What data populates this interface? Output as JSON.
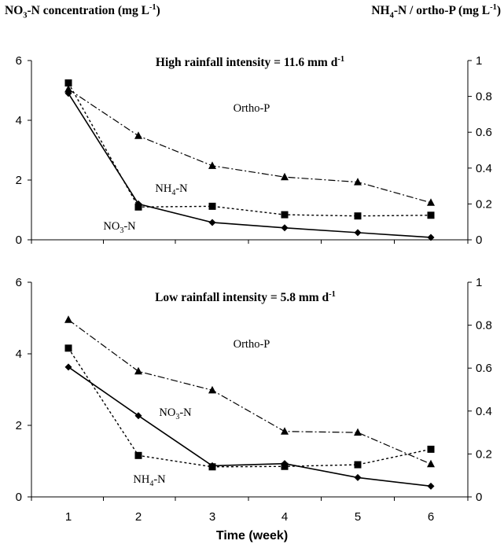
{
  "labels": {
    "left_axis": {
      "chem": "NO",
      "sub": "3",
      "rest": "-N concentration (mg L",
      "sup": "-1",
      "end": ")"
    },
    "right_axis": {
      "chem": "NH",
      "sub": "4",
      "rest": "-N / ortho-P (mg L",
      "sup": "-1",
      "end": ")"
    },
    "x_axis": "Time (week)"
  },
  "chart_data": [
    {
      "type": "line",
      "title": {
        "main": "High rainfall intensity = 11.6 mm d",
        "sup": "-1"
      },
      "x": [
        1,
        2,
        3,
        4,
        5,
        6
      ],
      "xlabel": "Time (week)",
      "xticks": [
        "1",
        "2",
        "3",
        "4",
        "5",
        "6"
      ],
      "y_left": {
        "label": "NO3-N concentration (mg L-1)",
        "lim": [
          0,
          6
        ],
        "ticks": [
          "0",
          "2",
          "4",
          "6"
        ]
      },
      "y_right": {
        "label": "NH4-N / ortho-P (mg L-1)",
        "lim": [
          0,
          1
        ],
        "ticks": [
          "0",
          "0.2",
          "0.4",
          "0.6",
          "0.8",
          "1"
        ]
      },
      "grid": false,
      "series": [
        {
          "name": "NO3-N",
          "axis": "left",
          "marker": "diamond",
          "line": "solid",
          "values": [
            4.9,
            1.2,
            0.58,
            0.4,
            0.24,
            0.08
          ]
        },
        {
          "name": "NH4-N",
          "axis": "right",
          "marker": "square",
          "line": "dashed",
          "values": [
            0.875,
            0.183,
            0.187,
            0.14,
            0.133,
            0.137
          ]
        },
        {
          "name": "Ortho-P",
          "axis": "right",
          "marker": "triangle",
          "line": "dashdot",
          "values": [
            0.84,
            0.58,
            0.413,
            0.35,
            0.322,
            0.207
          ]
        }
      ],
      "series_labels": [
        {
          "series": "Ortho-P",
          "text": "Ortho-P",
          "sub": "",
          "tail": ""
        },
        {
          "series": "NH4-N",
          "text": "NH",
          "sub": "4",
          "tail": "-N"
        },
        {
          "series": "NO3-N",
          "text": "NO",
          "sub": "3",
          "tail": "-N"
        }
      ]
    },
    {
      "type": "line",
      "title": {
        "main": "Low rainfall intensity = 5.8 mm d",
        "sup": "-1"
      },
      "x": [
        1,
        2,
        3,
        4,
        5,
        6
      ],
      "xlabel": "Time (week)",
      "xticks": [
        "1",
        "2",
        "3",
        "4",
        "5",
        "6"
      ],
      "y_left": {
        "label": "NO3-N concentration (mg L-1)",
        "lim": [
          0,
          6
        ],
        "ticks": [
          "0",
          "2",
          "4",
          "6"
        ]
      },
      "y_right": {
        "label": "NH4-N / ortho-P (mg L-1)",
        "lim": [
          0,
          1
        ],
        "ticks": [
          "0",
          "0.2",
          "0.4",
          "0.6",
          "0.8",
          "1"
        ]
      },
      "grid": false,
      "series": [
        {
          "name": "NO3-N",
          "axis": "left",
          "marker": "diamond",
          "line": "solid",
          "values": [
            3.63,
            2.27,
            0.87,
            0.93,
            0.54,
            0.3
          ]
        },
        {
          "name": "NH4-N",
          "axis": "right",
          "marker": "square",
          "line": "dashed",
          "values": [
            0.693,
            0.193,
            0.14,
            0.142,
            0.15,
            0.222
          ]
        },
        {
          "name": "Ortho-P",
          "axis": "right",
          "marker": "triangle",
          "line": "dashdot",
          "values": [
            0.825,
            0.585,
            0.497,
            0.305,
            0.3,
            0.153
          ]
        }
      ],
      "series_labels": [
        {
          "series": "Ortho-P",
          "text": "Ortho-P",
          "sub": "",
          "tail": ""
        },
        {
          "series": "NO3-N",
          "text": "NO",
          "sub": "3",
          "tail": "-N"
        },
        {
          "series": "NH4-N",
          "text": "NH",
          "sub": "4",
          "tail": "-N"
        }
      ]
    }
  ]
}
